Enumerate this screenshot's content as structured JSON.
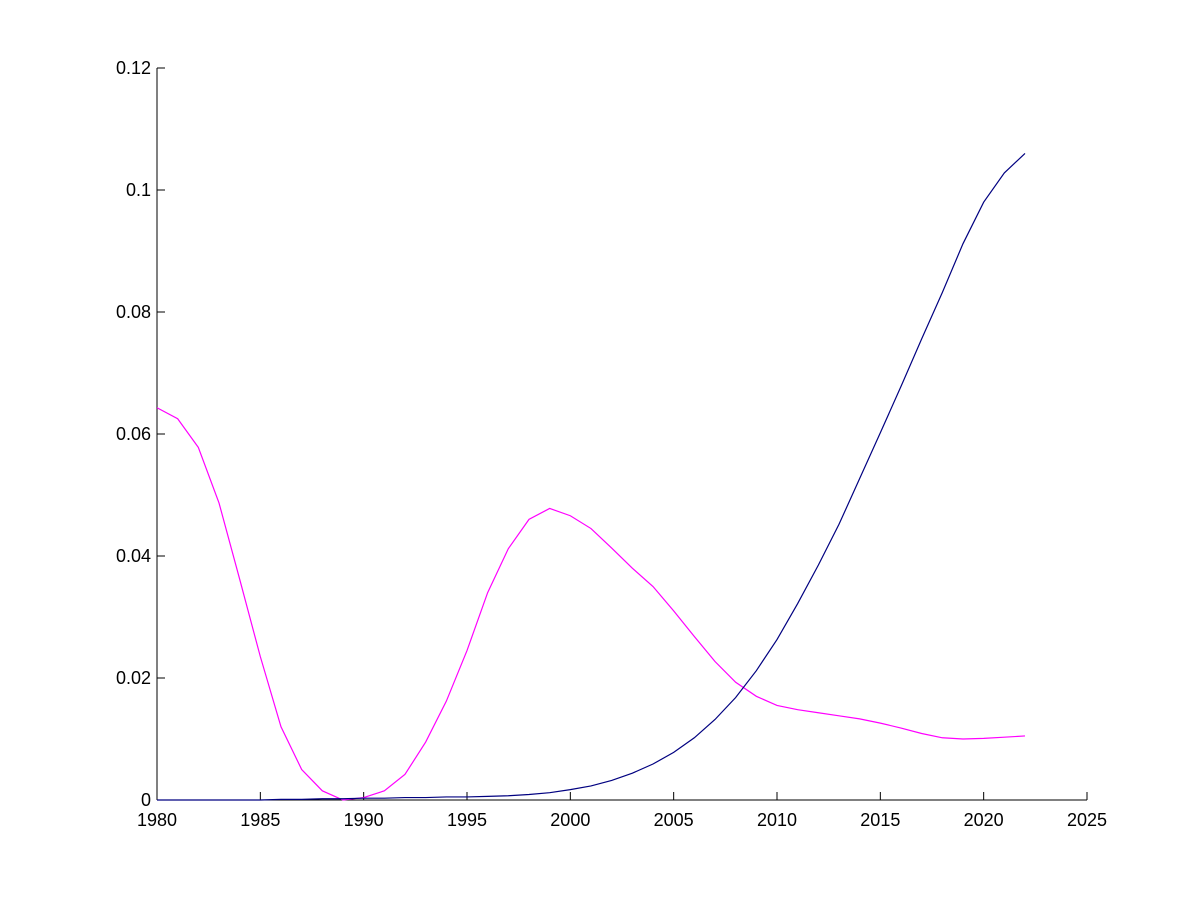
{
  "chart_data": {
    "type": "line",
    "title": "",
    "xlabel": "",
    "ylabel": "",
    "xlim": [
      1980,
      2025
    ],
    "ylim": [
      0,
      0.12
    ],
    "x_ticks": [
      1980,
      1985,
      1990,
      1995,
      2000,
      2005,
      2010,
      2015,
      2020,
      2025
    ],
    "y_ticks": [
      0,
      0.02,
      0.04,
      0.06,
      0.08,
      0.1,
      0.12
    ],
    "x_tick_labels": [
      "1980",
      "1985",
      "1990",
      "1995",
      "2000",
      "2005",
      "2010",
      "2015",
      "2020",
      "2025"
    ],
    "y_tick_labels": [
      "0",
      "0.02",
      "0.04",
      "0.06",
      "0.08",
      "0.1",
      "0.12"
    ],
    "grid": false,
    "legend": "none",
    "x": [
      1980,
      1981,
      1982,
      1983,
      1984,
      1985,
      1986,
      1987,
      1988,
      1989,
      1990,
      1991,
      1992,
      1993,
      1994,
      1995,
      1996,
      1997,
      1998,
      1999,
      2000,
      2001,
      2002,
      2003,
      2004,
      2005,
      2006,
      2007,
      2008,
      2009,
      2010,
      2011,
      2012,
      2013,
      2014,
      2015,
      2016,
      2017,
      2018,
      2019,
      2020,
      2021,
      2022
    ],
    "series": [
      {
        "color": "#ff00ff",
        "values": [
          0.0643,
          0.0625,
          0.0578,
          0.0487,
          0.0362,
          0.0235,
          0.012,
          0.005,
          0.0015,
          0.0,
          0.0004,
          0.0015,
          0.0042,
          0.0095,
          0.0162,
          0.0245,
          0.034,
          0.0412,
          0.046,
          0.0478,
          0.0466,
          0.0445,
          0.0413,
          0.038,
          0.035,
          0.031,
          0.0268,
          0.0227,
          0.0193,
          0.017,
          0.0155,
          0.0148,
          0.0143,
          0.0138,
          0.0133,
          0.0126,
          0.0118,
          0.0109,
          0.0102,
          0.01,
          0.0101,
          0.0103,
          0.0105
        ]
      },
      {
        "color": "#000080",
        "values": [
          0.0,
          0.0,
          0.0,
          0.0,
          0.0,
          0.0,
          0.0001,
          0.0001,
          0.0002,
          0.0002,
          0.0003,
          0.0003,
          0.0004,
          0.0004,
          0.0005,
          0.0005,
          0.0006,
          0.0007,
          0.0009,
          0.0012,
          0.0017,
          0.0023,
          0.0032,
          0.0044,
          0.0059,
          0.0078,
          0.0102,
          0.0132,
          0.0168,
          0.0212,
          0.0263,
          0.0322,
          0.0385,
          0.0452,
          0.0527,
          0.0602,
          0.0678,
          0.0756,
          0.0832,
          0.0912,
          0.098,
          0.1028,
          0.106
        ]
      }
    ]
  }
}
